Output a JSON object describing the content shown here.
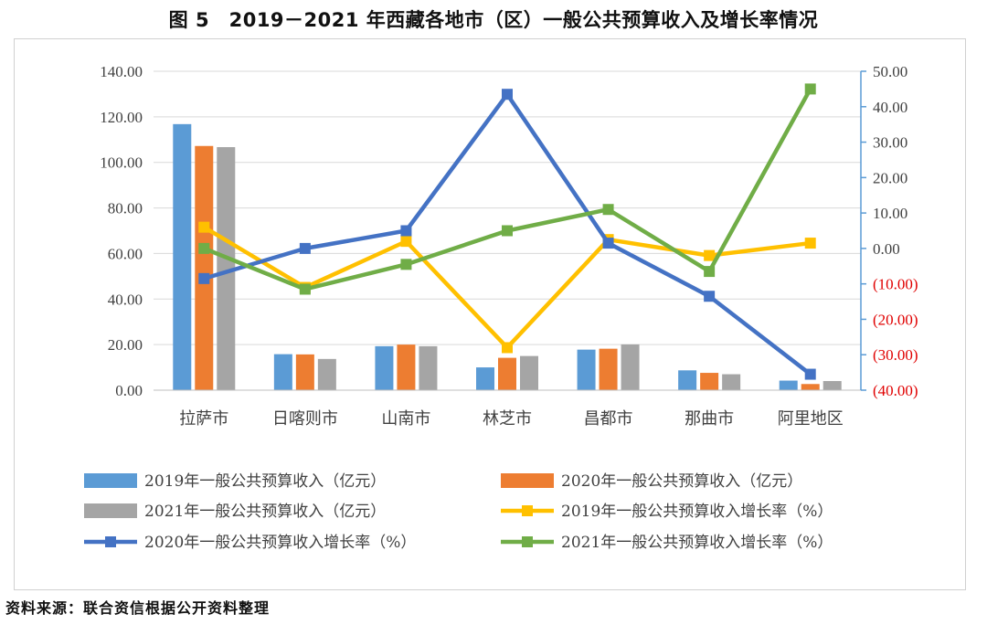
{
  "title": "图 5　2019－2021 年西藏各地市（区）一般公共预算收入及增长率情况",
  "source": "资料来源：联合资信根据公开资料整理",
  "chart_data": {
    "type": "bar+line",
    "categories": [
      "拉萨市",
      "日喀则市",
      "山南市",
      "林芝市",
      "昌都市",
      "那曲市",
      "阿里地区"
    ],
    "left_axis": {
      "min": 0,
      "max": 140,
      "step": 20,
      "ticks": [
        "0.00",
        "20.00",
        "40.00",
        "60.00",
        "80.00",
        "100.00",
        "120.00",
        "140.00"
      ]
    },
    "right_axis": {
      "min": -40,
      "max": 50,
      "step": 10,
      "ticks": [
        "(40.00)",
        "(30.00)",
        "(20.00)",
        "(10.00)",
        "0.00",
        "10.00",
        "20.00",
        "30.00",
        "40.00",
        "50.00"
      ],
      "negative_color": "#e00000",
      "axis_color": "#5b9bd5"
    },
    "bar_series": [
      {
        "name": "2019年一般公共预算收入（亿元）",
        "color": "#5b9bd5",
        "values": [
          116.8,
          15.8,
          19.3,
          10.0,
          17.8,
          8.7,
          4.2
        ]
      },
      {
        "name": "2020年一般公共预算收入（亿元）",
        "color": "#ed7d31",
        "values": [
          107.2,
          15.7,
          20.0,
          14.2,
          18.2,
          7.6,
          2.7
        ]
      },
      {
        "name": "2021年一般公共预算收入（亿元）",
        "color": "#a5a5a5",
        "values": [
          106.7,
          13.7,
          19.3,
          15.0,
          20.1,
          7.0,
          4.0
        ]
      }
    ],
    "line_series": [
      {
        "name": "2019年一般公共预算收入增长率（%）",
        "color": "#ffc000",
        "values": [
          6.0,
          -11.0,
          2.0,
          -28.0,
          2.5,
          -2.0,
          1.5
        ]
      },
      {
        "name": "2020年一般公共预算收入增长率（%）",
        "color": "#4472c4",
        "values": [
          -8.5,
          0.0,
          5.0,
          43.5,
          1.5,
          -13.5,
          -35.5
        ]
      },
      {
        "name": "2021年一般公共预算收入增长率（%）",
        "color": "#70ad47",
        "values": [
          0.0,
          -11.5,
          -4.5,
          5.0,
          11.0,
          -6.5,
          45.0
        ]
      }
    ],
    "legend": "bottom"
  }
}
